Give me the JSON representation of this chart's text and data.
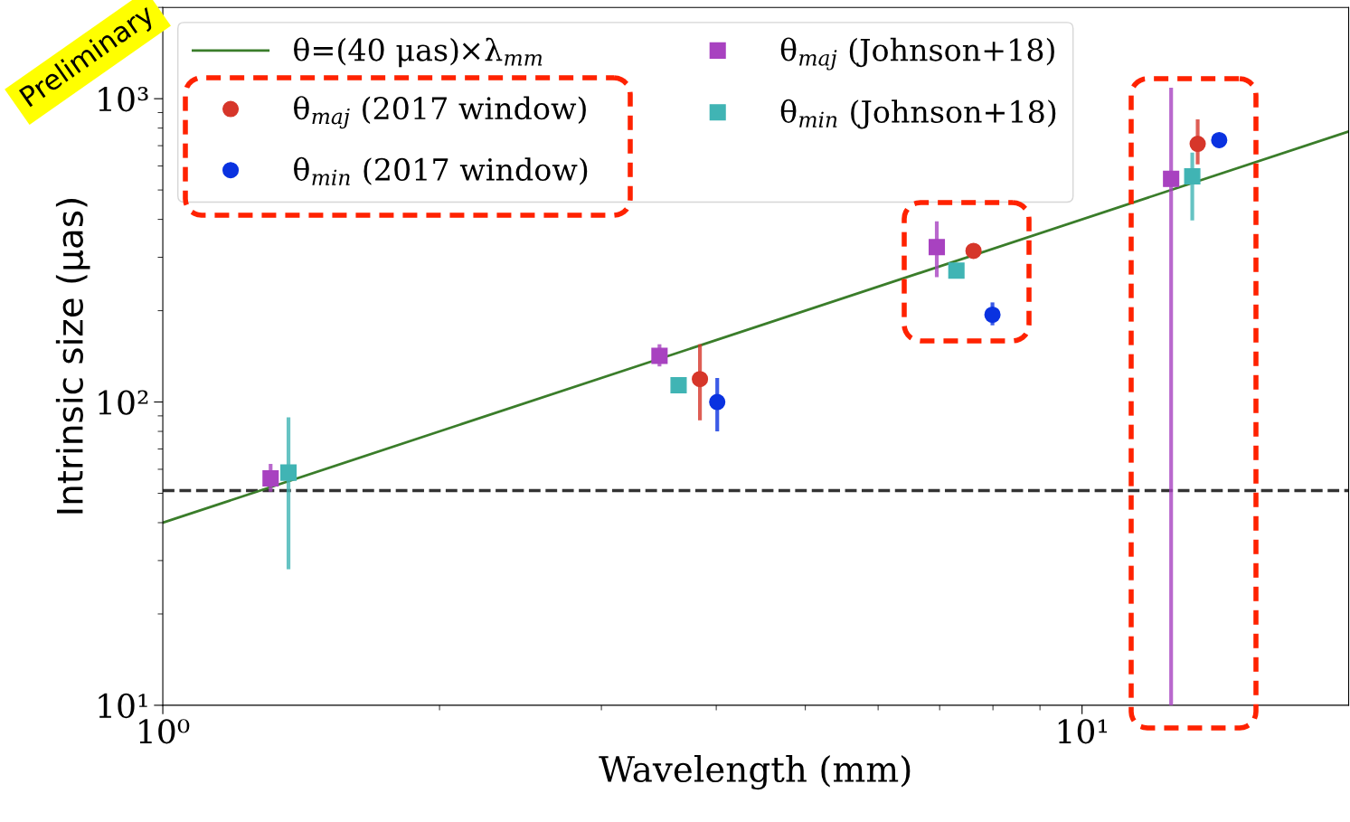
{
  "chart_data": {
    "type": "scatter",
    "xlabel": "Wavelength (mm)",
    "ylabel": "Intrinsic size (μas)",
    "log": "xy",
    "xlim": [
      1,
      19.5
    ],
    "ylim": [
      10,
      2000
    ],
    "xticks": [
      {
        "value": 1,
        "label": "10⁰"
      },
      {
        "value": 10,
        "label": "10¹"
      }
    ],
    "yticks": [
      {
        "value": 10,
        "label": "10¹"
      },
      {
        "value": 100,
        "label": "10²"
      },
      {
        "value": 1000,
        "label": "10³"
      }
    ],
    "grid": false,
    "legend": "top left",
    "series": [
      {
        "name": "θ=(40 μas)×λ$_{mm}$",
        "type": "line",
        "color": "#3a7d2a",
        "marker": "none",
        "line_style": "solid",
        "x": [
          1,
          19.5
        ],
        "values": [
          40,
          780
        ]
      },
      {
        "name": "θ$_{maj}$ (2017 window)",
        "color": "#d6362a",
        "marker": "circle",
        "x": [
          3.84,
          7.62,
          13.36
        ],
        "values": [
          119,
          315,
          710
        ],
        "errors": [
          [
            87,
            155
          ],
          null,
          [
            607,
            855
          ]
        ]
      },
      {
        "name": "θ$_{min}$ (2017 window)",
        "color": "#0a32e0",
        "marker": "circle",
        "x": [
          4.01,
          7.99,
          14.1
        ],
        "values": [
          100,
          194,
          730
        ],
        "errors": [
          [
            80,
            120
          ],
          [
            179,
            213
          ],
          null
        ]
      },
      {
        "name": "θ$_{maj}$ (Johnson+18)",
        "color": "#a842c0",
        "marker": "square",
        "x": [
          1.31,
          3.47,
          6.95,
          12.5
        ],
        "values": [
          56,
          142,
          324,
          544
        ],
        "errors": [
          [
            50.6,
            62.5
          ],
          [
            131,
            155
          ],
          [
            258,
            394
          ],
          [
            10,
            1087
          ]
        ]
      },
      {
        "name": "θ$_{min}$ (Johnson+18)",
        "color": "#40b4b4",
        "marker": "square",
        "x": [
          1.37,
          3.64,
          7.3,
          13.18
        ],
        "values": [
          58.5,
          113.5,
          271,
          555
        ],
        "errors": [
          [
            28.1,
            89
          ],
          [
            108,
            119
          ],
          [
            256,
            286
          ],
          [
            397,
            664
          ]
        ]
      }
    ],
    "ref_lines": [
      {
        "axis": "y",
        "value": 51,
        "color": "#333333",
        "line_style": "dashed"
      }
    ],
    "annotations": [
      "Preliminary"
    ]
  }
}
